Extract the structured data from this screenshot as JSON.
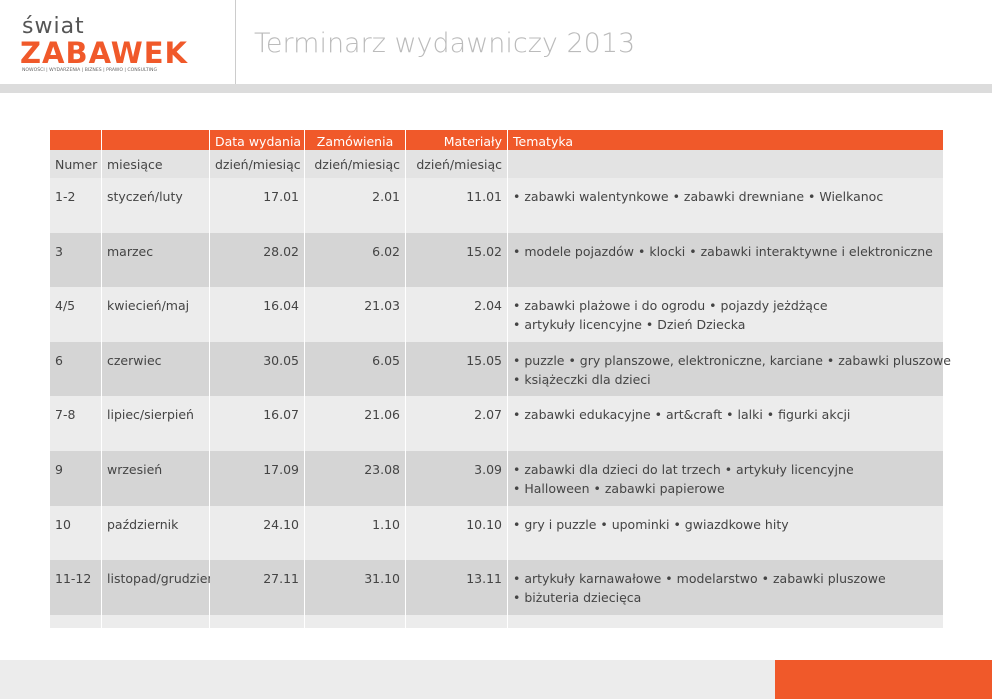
{
  "logo": {
    "top": "świat",
    "main": "ZABAWEK",
    "tagline": "NOWOŚCI | WYDARZENIA | BIZNES | PRAWO | CONSULTING"
  },
  "title": "Terminarz wydawniczy 2013",
  "table": {
    "headers": [
      "Data wydania",
      "Zamówienia",
      "Materiały",
      "Tematyka"
    ],
    "subheaders": [
      "Numer",
      "miesiące",
      "dzień/miesiąc",
      "dzień/miesiąc",
      "dzień/miesiąc"
    ],
    "rows": [
      [
        "1-2",
        "styczeń/luty",
        "17.01",
        "2.01",
        "11.01",
        [
          "• zabawki walentynkowe • zabawki drewniane • Wielkanoc"
        ]
      ],
      [
        "3",
        "marzec",
        "28.02",
        "6.02",
        "15.02",
        [
          "• modele pojazdów • klocki • zabawki interaktywne i elektroniczne"
        ]
      ],
      [
        "4/5",
        "kwiecień/maj",
        "16.04",
        "21.03",
        "2.04",
        [
          "• zabawki plażowe i do ogrodu • pojazdy jeżdżące",
          "• artykuły licencyjne • Dzień Dziecka"
        ]
      ],
      [
        "6",
        "czerwiec",
        "30.05",
        "6.05",
        "15.05",
        [
          "• puzzle • gry planszowe, elektroniczne, karciane • zabawki pluszowe",
          "• książeczki dla dzieci"
        ]
      ],
      [
        "7-8",
        "lipiec/sierpień",
        "16.07",
        "21.06",
        "2.07",
        [
          "• zabawki edukacyjne • art&craft • lalki • figurki akcji"
        ]
      ],
      [
        "9",
        "wrzesień",
        "17.09",
        "23.08",
        "3.09",
        [
          "• zabawki dla dzieci do lat trzech • artykuły licencyjne",
          "• Halloween • zabawki papierowe"
        ]
      ],
      [
        "10",
        "październik",
        "24.10",
        "1.10",
        "10.10",
        [
          "• gry i puzzle • upominki • gwiazdkowe hity"
        ]
      ],
      [
        "11-12",
        "listopad/grudzień",
        "27.11",
        "31.10",
        "13.11",
        [
          "• artykuły karnawałowe • modelarstwo • zabawki pluszowe",
          "• biżuteria dziecięca"
        ]
      ]
    ]
  }
}
